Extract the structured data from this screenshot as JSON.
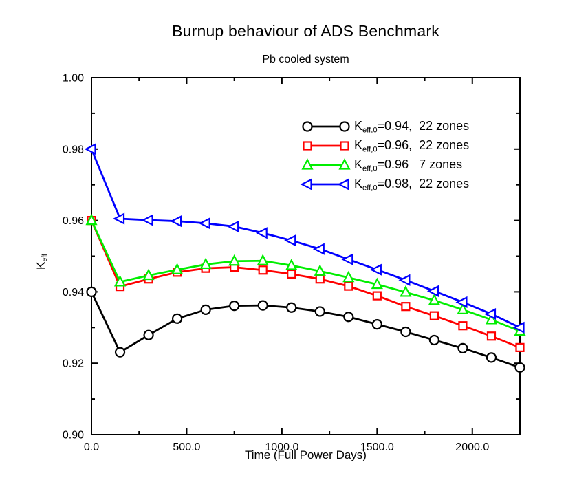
{
  "title": "Burnup behaviour of ADS Benchmark",
  "subtitle": "Pb cooled system",
  "chart_data": {
    "type": "line",
    "title": "Burnup behaviour of ADS Benchmark",
    "subtitle": "Pb cooled system",
    "xlabel": "Time (Full Power Days)",
    "ylabel_base": "K",
    "ylabel_sub": "eff",
    "xlim": [
      0,
      2250
    ],
    "ylim": [
      0.9,
      1.0
    ],
    "grid": false,
    "legend_position": "upper-center-inside",
    "x_major_ticks": [
      0,
      500,
      1000,
      1500,
      2000
    ],
    "x_major_tick_labels": [
      "0.0",
      "500.0",
      "1000.0",
      "1500.0",
      "2000.0"
    ],
    "x_minor_ticks": [
      250,
      750,
      1250,
      1750,
      2250
    ],
    "y_major_ticks": [
      0.9,
      0.92,
      0.94,
      0.96,
      0.98,
      1.0
    ],
    "y_major_tick_labels": [
      "0.90",
      "0.92",
      "0.94",
      "0.96",
      "0.98",
      "1.00"
    ],
    "y_minor_ticks": [
      0.91,
      0.93,
      0.95,
      0.97,
      0.99
    ],
    "x": [
      0,
      150,
      300,
      450,
      600,
      750,
      900,
      1050,
      1200,
      1350,
      1500,
      1650,
      1800,
      1950,
      2100,
      2250
    ],
    "series": [
      {
        "name": "Keff,0=0.94, 22 zones",
        "label_base": "K",
        "label_sub": "eff,0",
        "label_rest": "=0.94,  22 zones",
        "color": "#000000",
        "marker": "circle",
        "values": [
          0.94,
          0.9231,
          0.9279,
          0.9325,
          0.935,
          0.9361,
          0.9362,
          0.9356,
          0.9345,
          0.933,
          0.9309,
          0.9288,
          0.9265,
          0.9242,
          0.9216,
          0.9188
        ]
      },
      {
        "name": "Keff,0=0.96, 22 zones",
        "label_base": "K",
        "label_sub": "eff,0",
        "label_rest": "=0.96,  22 zones",
        "color": "#ff0000",
        "marker": "square",
        "values": [
          0.96,
          0.9415,
          0.9436,
          0.9455,
          0.9466,
          0.9469,
          0.9461,
          0.945,
          0.9436,
          0.9416,
          0.9389,
          0.9359,
          0.9333,
          0.9305,
          0.9276,
          0.9244
        ]
      },
      {
        "name": "Keff,0=0.96  7 zones",
        "label_base": "K",
        "label_sub": "eff,0",
        "label_rest": "=0.96   7 zones",
        "color": "#00ee00",
        "marker": "triangle-up",
        "values": [
          0.96,
          0.9428,
          0.9446,
          0.9462,
          0.9477,
          0.9486,
          0.9487,
          0.9474,
          0.9458,
          0.944,
          0.9421,
          0.9399,
          0.9376,
          0.935,
          0.9322,
          0.929
        ]
      },
      {
        "name": "Keff,0=0.98, 22 zones",
        "label_base": "K",
        "label_sub": "eff,0",
        "label_rest": "=0.98,  22 zones",
        "color": "#0000ff",
        "marker": "triangle-left",
        "values": [
          0.98,
          0.9605,
          0.9601,
          0.9598,
          0.9592,
          0.9583,
          0.9565,
          0.9544,
          0.952,
          0.9491,
          0.9462,
          0.9433,
          0.9402,
          0.9371,
          0.9338,
          0.93
        ]
      }
    ]
  }
}
